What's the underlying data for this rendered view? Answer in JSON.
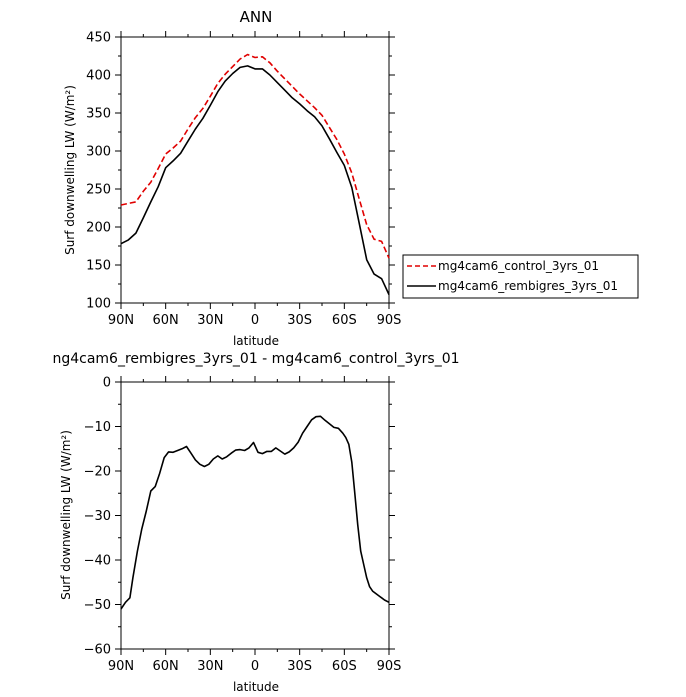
{
  "chart_data": [
    {
      "type": "line",
      "title": "ANN",
      "xlabel": "latitude",
      "ylabel": "Surf downwelling LW (W/m²)",
      "xlim": [
        90,
        -90
      ],
      "ylim": [
        100,
        450
      ],
      "xticks": [
        90,
        60,
        30,
        0,
        -30,
        -60,
        -90
      ],
      "xtick_labels": [
        "90N",
        "60N",
        "30N",
        "0",
        "30S",
        "60S",
        "90S"
      ],
      "yticks": [
        100,
        150,
        200,
        250,
        300,
        350,
        400,
        450
      ],
      "ytick_labels": [
        "100",
        "150",
        "200",
        "250",
        "300",
        "350",
        "400",
        "450"
      ],
      "grid": false,
      "legend_position": "right",
      "series": [
        {
          "name": "mg4cam6_control_3yrs_01",
          "color": "#e00000",
          "style": "dashed",
          "x": [
            90,
            85,
            80,
            75,
            70,
            65,
            60,
            55,
            50,
            45,
            40,
            35,
            30,
            25,
            20,
            15,
            10,
            5,
            0,
            -5,
            -10,
            -15,
            -20,
            -25,
            -30,
            -35,
            -40,
            -45,
            -50,
            -55,
            -60,
            -65,
            -70,
            -75,
            -80,
            -85,
            -90
          ],
          "y": [
            229,
            231,
            233,
            247,
            259,
            277,
            296,
            304,
            313,
            329,
            344,
            356,
            372,
            389,
            401,
            411,
            421,
            427,
            423,
            424,
            416,
            405,
            395,
            385,
            375,
            366,
            357,
            347,
            331,
            315,
            296,
            271,
            237,
            203,
            184,
            181,
            159
          ]
        },
        {
          "name": "mg4cam6_rembigres_3yrs_01",
          "color": "#000000",
          "style": "solid",
          "x": [
            90,
            85,
            80,
            75,
            70,
            65,
            60,
            55,
            50,
            45,
            40,
            35,
            30,
            25,
            20,
            15,
            10,
            5,
            0,
            -5,
            -10,
            -15,
            -20,
            -25,
            -30,
            -35,
            -40,
            -45,
            -50,
            -55,
            -60,
            -65,
            -70,
            -75,
            -80,
            -85,
            -90
          ],
          "y": [
            178,
            183,
            192,
            212,
            233,
            253,
            278,
            287,
            297,
            313,
            329,
            343,
            360,
            378,
            392,
            402,
            410,
            412,
            408,
            408,
            400,
            390,
            380,
            370,
            362,
            353,
            345,
            333,
            316,
            298,
            281,
            252,
            205,
            157,
            138,
            132,
            111
          ]
        }
      ]
    },
    {
      "type": "line",
      "title": "ng4cam6_rembigres_3yrs_01 - mg4cam6_control_3yrs_01",
      "xlabel": "latitude",
      "ylabel": "Surf downwelling LW (W/m²)",
      "xlim": [
        90,
        -90
      ],
      "ylim": [
        -60,
        0
      ],
      "xticks": [
        90,
        60,
        30,
        0,
        -30,
        -60,
        -90
      ],
      "xtick_labels": [
        "90N",
        "60N",
        "30N",
        "0",
        "30S",
        "60S",
        "90S"
      ],
      "yticks": [
        0,
        -10,
        -20,
        -30,
        -40,
        -50,
        -60
      ],
      "ytick_labels": [
        "0",
        "−10",
        "−20",
        "−30",
        "−40",
        "−50",
        "−60"
      ],
      "grid": false,
      "series": [
        {
          "color": "#000000",
          "style": "solid",
          "x": [
            90,
            87,
            84,
            82,
            79,
            76,
            73,
            70,
            67,
            64,
            61,
            58,
            55,
            52,
            49,
            46,
            43,
            40,
            37,
            34,
            31,
            28,
            25,
            22,
            19,
            16,
            13,
            10,
            7,
            4,
            1,
            -2,
            -5,
            -8,
            -11,
            -14,
            -17,
            -20,
            -23,
            -26,
            -29,
            -32,
            -35,
            -38,
            -41,
            -44,
            -47,
            -50,
            -53,
            -56,
            -59,
            -61,
            -63,
            -65,
            -67,
            -69,
            -71,
            -73,
            -75,
            -77,
            -79,
            -81,
            -83,
            -85,
            -87,
            -90
          ],
          "y": [
            -51,
            -49.5,
            -48.5,
            -44,
            -38,
            -33,
            -29,
            -24.5,
            -23.5,
            -20.5,
            -17,
            -15.7,
            -15.8,
            -15.4,
            -15,
            -14.5,
            -16,
            -17.5,
            -18.5,
            -19,
            -18.5,
            -17.3,
            -16.6,
            -17.3,
            -16.8,
            -16,
            -15.3,
            -15.2,
            -15.4,
            -14.8,
            -13.6,
            -15.8,
            -16.1,
            -15.6,
            -15.6,
            -14.8,
            -15.5,
            -16.2,
            -15.7,
            -14.8,
            -13.5,
            -11.5,
            -10,
            -8.5,
            -7.8,
            -7.7,
            -8.6,
            -9.4,
            -10.2,
            -10.4,
            -11.5,
            -12.5,
            -14,
            -18,
            -25,
            -32,
            -38,
            -41,
            -44,
            -46,
            -47,
            -47.5,
            -48,
            -48.5,
            -49,
            -49.5
          ]
        }
      ]
    }
  ]
}
